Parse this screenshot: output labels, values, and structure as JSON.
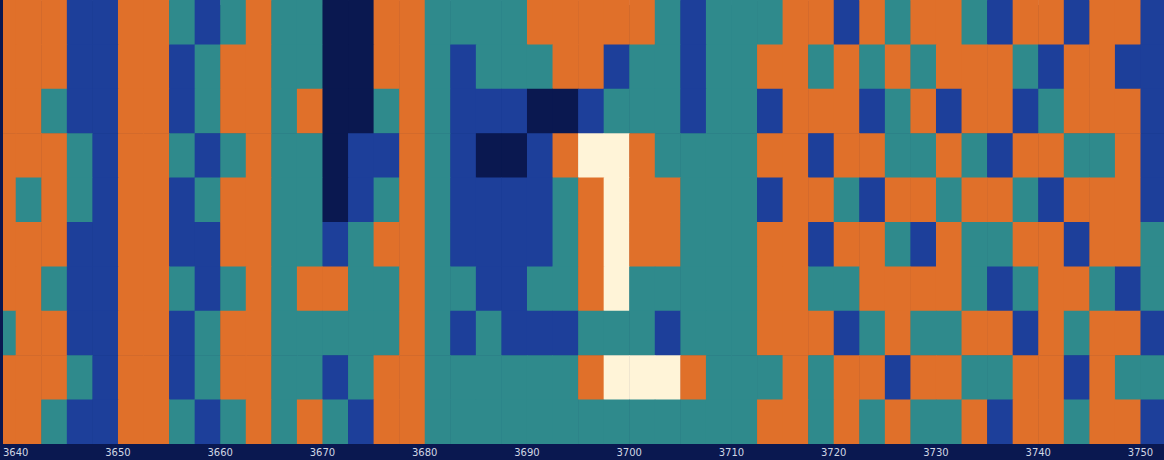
{
  "chart_data": {
    "type": "heatmap",
    "x_bins": [
      3637.5,
      3640,
      3642.5,
      3645,
      3647.5,
      3650,
      3652.5,
      3655,
      3657.5,
      3660,
      3662.5,
      3665,
      3667.5,
      3670,
      3672.5,
      3675,
      3677.5,
      3680,
      3682.5,
      3685,
      3687.5,
      3690,
      3692.5,
      3695,
      3697.5,
      3700,
      3702.5,
      3705,
      3707.5,
      3710,
      3712.5,
      3715,
      3717.5,
      3720,
      3722.5,
      3725,
      3727.5,
      3730,
      3732.5,
      3735,
      3737.5,
      3740,
      3742.5,
      3745,
      3747.5,
      3750,
      3752.5
    ],
    "y_bins": [
      0,
      1,
      2,
      3,
      4,
      5,
      6,
      7,
      8,
      9,
      10
    ],
    "cells": [
      [
        3,
        3,
        3,
        1,
        1,
        3,
        3,
        2,
        1,
        2,
        3,
        2,
        2,
        0,
        0,
        3,
        3,
        2,
        2,
        2,
        2,
        3,
        3,
        3,
        3,
        3,
        2,
        1,
        2,
        2,
        2,
        3,
        3,
        1,
        3,
        2,
        3,
        3,
        2,
        1,
        3,
        3,
        1,
        3,
        3,
        1
      ],
      [
        3,
        3,
        3,
        1,
        1,
        3,
        3,
        1,
        2,
        3,
        3,
        2,
        2,
        0,
        0,
        3,
        3,
        2,
        1,
        2,
        2,
        2,
        3,
        3,
        1,
        2,
        2,
        1,
        2,
        2,
        3,
        3,
        2,
        3,
        2,
        3,
        2,
        3,
        3,
        3,
        2,
        1,
        3,
        3,
        1,
        1
      ],
      [
        3,
        3,
        2,
        1,
        1,
        3,
        3,
        1,
        2,
        3,
        3,
        2,
        3,
        0,
        0,
        2,
        3,
        2,
        1,
        1,
        1,
        0,
        0,
        1,
        2,
        2,
        2,
        1,
        2,
        2,
        1,
        3,
        3,
        3,
        1,
        2,
        3,
        1,
        3,
        3,
        1,
        2,
        3,
        3,
        3,
        1
      ],
      [
        3,
        3,
        3,
        2,
        1,
        3,
        3,
        2,
        1,
        2,
        3,
        2,
        2,
        0,
        1,
        1,
        3,
        2,
        1,
        0,
        0,
        1,
        3,
        4,
        4,
        3,
        2,
        2,
        2,
        2,
        3,
        3,
        1,
        3,
        3,
        2,
        2,
        3,
        2,
        1,
        3,
        3,
        2,
        2,
        3,
        1
      ],
      [
        3,
        2,
        3,
        2,
        1,
        3,
        3,
        1,
        2,
        3,
        3,
        2,
        2,
        0,
        1,
        2,
        3,
        2,
        1,
        1,
        1,
        1,
        2,
        3,
        4,
        3,
        3,
        2,
        2,
        2,
        1,
        3,
        3,
        2,
        1,
        3,
        3,
        2,
        3,
        3,
        2,
        1,
        3,
        3,
        3,
        1
      ],
      [
        3,
        3,
        3,
        1,
        1,
        3,
        3,
        1,
        1,
        3,
        3,
        2,
        2,
        1,
        2,
        3,
        3,
        2,
        1,
        1,
        1,
        1,
        2,
        3,
        4,
        3,
        3,
        2,
        2,
        2,
        3,
        3,
        1,
        3,
        3,
        2,
        1,
        3,
        2,
        2,
        3,
        3,
        1,
        3,
        3,
        2
      ],
      [
        3,
        3,
        2,
        1,
        1,
        3,
        3,
        2,
        1,
        2,
        3,
        2,
        3,
        3,
        2,
        2,
        3,
        2,
        2,
        1,
        1,
        2,
        2,
        3,
        4,
        2,
        2,
        2,
        2,
        2,
        3,
        3,
        2,
        2,
        3,
        3,
        3,
        3,
        2,
        1,
        2,
        3,
        3,
        2,
        1,
        2
      ],
      [
        2,
        3,
        3,
        1,
        1,
        3,
        3,
        1,
        2,
        3,
        3,
        2,
        2,
        2,
        2,
        2,
        3,
        2,
        1,
        2,
        1,
        1,
        1,
        2,
        2,
        2,
        1,
        2,
        2,
        2,
        3,
        3,
        3,
        1,
        2,
        3,
        2,
        2,
        3,
        3,
        1,
        3,
        2,
        3,
        3,
        1
      ],
      [
        3,
        3,
        3,
        2,
        1,
        3,
        3,
        1,
        2,
        3,
        3,
        2,
        2,
        1,
        2,
        3,
        3,
        2,
        2,
        2,
        2,
        2,
        2,
        3,
        4,
        4,
        4,
        3,
        2,
        2,
        2,
        3,
        2,
        3,
        3,
        1,
        3,
        3,
        2,
        2,
        3,
        3,
        1,
        3,
        2,
        2
      ],
      [
        3,
        3,
        2,
        1,
        1,
        3,
        3,
        2,
        1,
        2,
        3,
        2,
        3,
        2,
        1,
        3,
        3,
        2,
        2,
        2,
        2,
        2,
        2,
        2,
        2,
        2,
        2,
        2,
        2,
        2,
        3,
        3,
        2,
        3,
        2,
        3,
        2,
        2,
        3,
        1,
        3,
        3,
        2,
        3,
        3,
        1
      ]
    ],
    "zlim": [
      0,
      4
    ],
    "colors": [
      "#0a1850",
      "#1d3f9a",
      "#2f8a8c",
      "#e0702a",
      "#fff4d8"
    ],
    "xlim": [
      3638.8,
      3752.3
    ],
    "xticks": [
      3640,
      3650,
      3660,
      3670,
      3680,
      3690,
      3700,
      3710,
      3720,
      3730,
      3740,
      3750
    ],
    "ylim": [
      0,
      10
    ],
    "tick_labels": "x",
    "grid": false
  }
}
